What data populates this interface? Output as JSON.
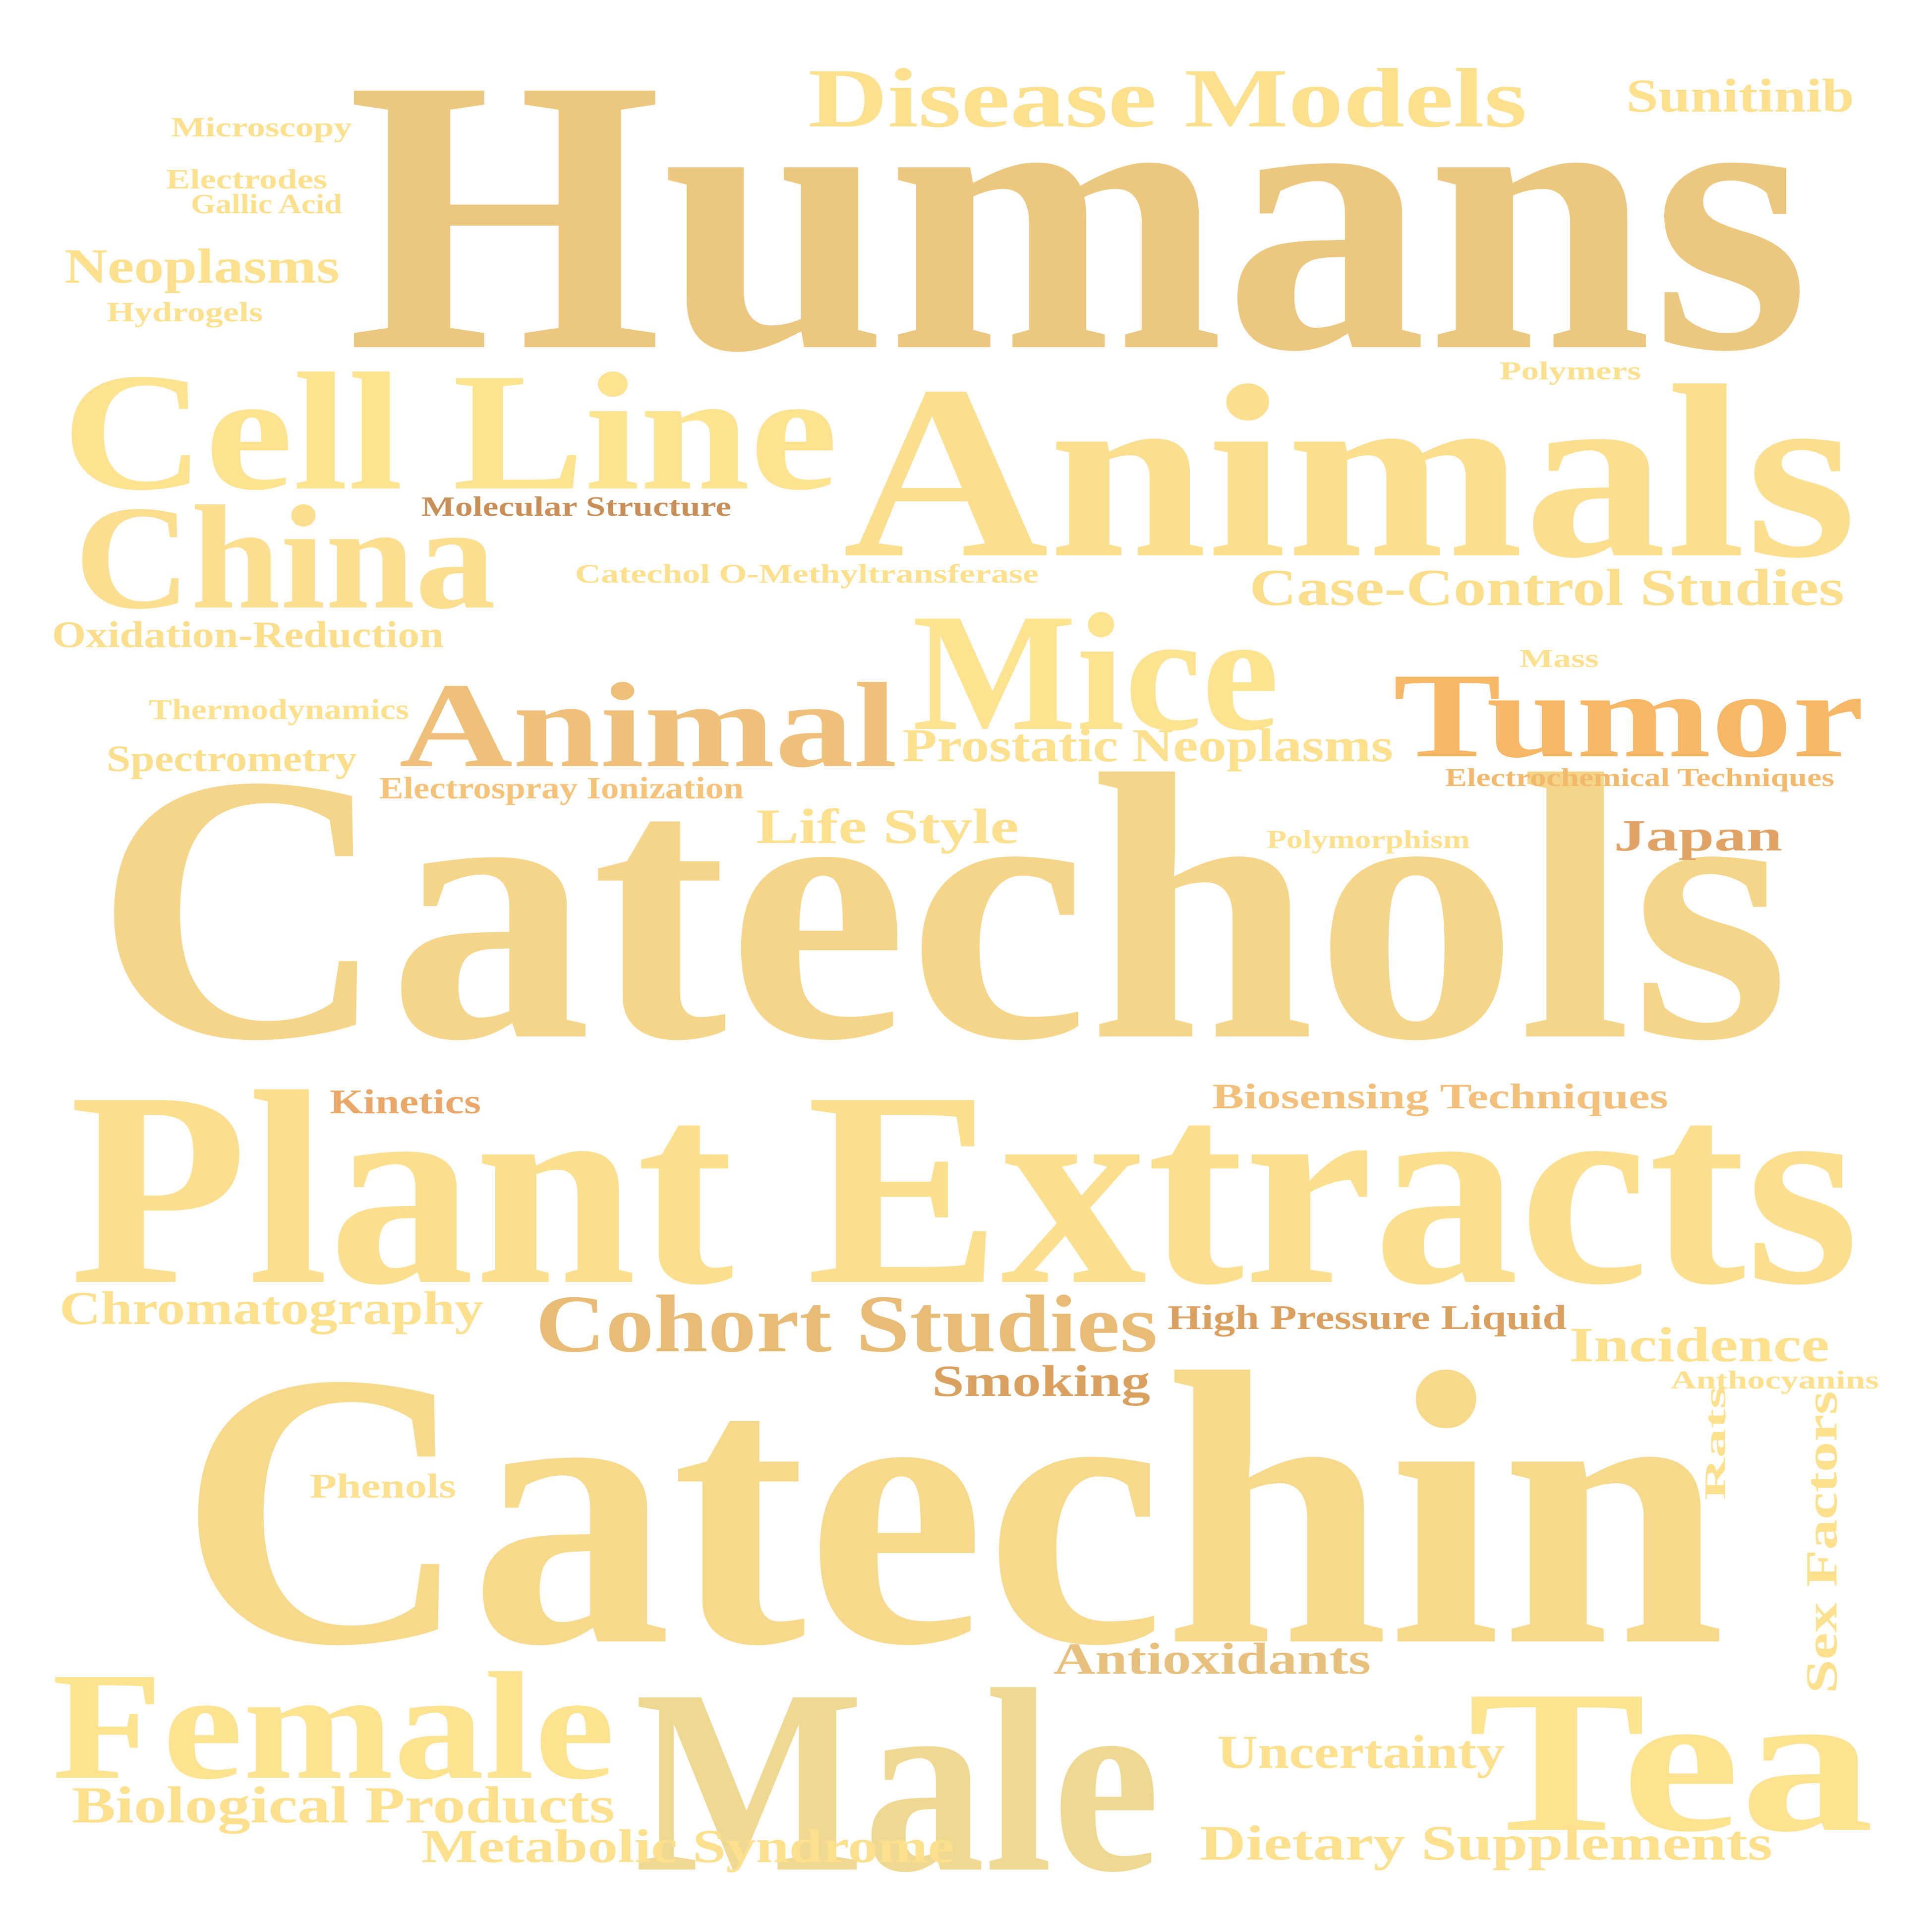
{
  "words": [
    {
      "text": "Humans",
      "color": "#EBC77F"
    },
    {
      "text": "Catechols",
      "color": "#F5D58A"
    },
    {
      "text": "Plant Extracts",
      "color": "#FBDF8E"
    },
    {
      "text": "Catechin",
      "color": "#F7D98B"
    },
    {
      "text": "Animals",
      "color": "#FBDF8E"
    },
    {
      "text": "Cell Line",
      "color": "#FDE290"
    },
    {
      "text": "China",
      "color": "#FBDE90"
    },
    {
      "text": "Disease Models",
      "color": "#FCE08E"
    },
    {
      "text": "Mice",
      "color": "#FDE290"
    },
    {
      "text": "Animal",
      "color": "#EFC07A"
    },
    {
      "text": "Tumor",
      "color": "#F6B866"
    },
    {
      "text": "Male",
      "color": "#EFD891"
    },
    {
      "text": "Female",
      "color": "#FDE290"
    },
    {
      "text": "Tea",
      "color": "#FDE290"
    },
    {
      "text": "Cohort Studies",
      "color": "#E8BC76"
    },
    {
      "text": "Sunitinib",
      "color": "#FCE08E"
    },
    {
      "text": "Microscopy",
      "color": "#FCE08E"
    },
    {
      "text": "Electrodes",
      "color": "#FCE08E"
    },
    {
      "text": "Gallic Acid",
      "color": "#FCE08E"
    },
    {
      "text": "Neoplasms",
      "color": "#FCE08E"
    },
    {
      "text": "Hydrogels",
      "color": "#FCE08E"
    },
    {
      "text": "Polymers",
      "color": "#FCE08E"
    },
    {
      "text": "Molecular Structure",
      "color": "#C98F58"
    },
    {
      "text": "Catechol O-Methyltransferase",
      "color": "#FCE08E"
    },
    {
      "text": "Case-Control Studies",
      "color": "#FBDE8C"
    },
    {
      "text": "Oxidation-Reduction",
      "color": "#FBDE8C"
    },
    {
      "text": "Mass",
      "color": "#FCE08E"
    },
    {
      "text": "Thermodynamics",
      "color": "#FCE08E"
    },
    {
      "text": "Prostatic Neoplasms",
      "color": "#FCE08E"
    },
    {
      "text": "Spectrometry",
      "color": "#FBDE8C"
    },
    {
      "text": "Electrospray Ionization",
      "color": "#F5C27A"
    },
    {
      "text": "Electrochemical Techniques",
      "color": "#F2B86C"
    },
    {
      "text": "Life Style",
      "color": "#FCE08E"
    },
    {
      "text": "Polymorphism",
      "color": "#FCE08E"
    },
    {
      "text": "Japan",
      "color": "#E0A365"
    },
    {
      "text": "Kinetics",
      "color": "#E9A86A"
    },
    {
      "text": "Biosensing Techniques",
      "color": "#F2C07A"
    },
    {
      "text": "Chromatography",
      "color": "#FCE08E"
    },
    {
      "text": "High Pressure Liquid",
      "color": "#D9A060"
    },
    {
      "text": "Incidence",
      "color": "#FCE08E"
    },
    {
      "text": "Anthocyanins",
      "color": "#FCE08E"
    },
    {
      "text": "Smoking",
      "color": "#D9A060"
    },
    {
      "text": "Rats",
      "color": "#FCE08E"
    },
    {
      "text": "Phenols",
      "color": "#FCE08E"
    },
    {
      "text": "Sex Factors",
      "color": "#FCE08E"
    },
    {
      "text": "Antioxidants",
      "color": "#E8C07E"
    },
    {
      "text": "Uncertainty",
      "color": "#FCE08E"
    },
    {
      "text": "Biological Products",
      "color": "#FCE08E"
    },
    {
      "text": "Metabolic Syndrome",
      "color": "#FCE08E"
    },
    {
      "text": "Dietary Supplements",
      "color": "#FCE08E"
    }
  ]
}
